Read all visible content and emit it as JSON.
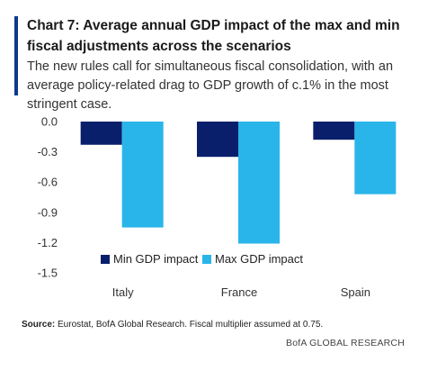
{
  "header": {
    "title": "Chart 7: Average annual GDP impact of the max and min fiscal adjustments across the scenarios",
    "subtitle": "The new rules call for simultaneous fiscal consolidation, with an average policy-related drag to GDP growth of c.1% in the most stringent case."
  },
  "chart_data": {
    "type": "bar",
    "title": "",
    "xlabel": "",
    "ylabel": "",
    "categories": [
      "Italy",
      "France",
      "Spain"
    ],
    "series": [
      {
        "name": "Min GDP impact",
        "values": [
          -0.23,
          -0.35,
          -0.18
        ],
        "color": "#0a1f6b"
      },
      {
        "name": "Max GDP impact",
        "values": [
          -1.05,
          -1.21,
          -0.72
        ],
        "color": "#29b5ea"
      }
    ],
    "yticks": [
      "0.0",
      "-0.3",
      "-0.6",
      "-0.9",
      "-1.2",
      "-1.5"
    ],
    "ylim": [
      -1.5,
      0
    ],
    "grid": false,
    "legend": "bottom-center"
  },
  "footer": {
    "source_label": "Source:",
    "source_text": "Eurostat, BofA Global Research. Fiscal multiplier assumed at 0.75.",
    "brand": "BofA GLOBAL RESEARCH"
  },
  "colors": {
    "accent": "#0b3a8c"
  }
}
